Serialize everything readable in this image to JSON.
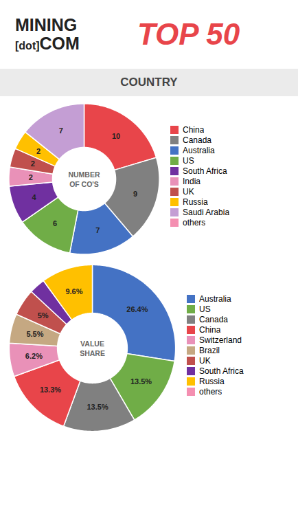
{
  "chart_data": [
    {
      "type": "pie",
      "title": "NUMBER\nOF CO'S",
      "annotations": [
        {
          "text": "MINING",
          "color": "#222222"
        },
        {
          "text": "[dot]",
          "color": "#222222"
        },
        {
          "text": "COM",
          "color": "#222222"
        },
        {
          "text": "TOP 50",
          "color": "#E8454A"
        },
        {
          "text": "COUNTRY",
          "color": "#444444"
        }
      ],
      "categories": [
        "China",
        "Canada",
        "Australia",
        "US",
        "South Africa",
        "India",
        "UK",
        "Russia",
        "Saudi Arabia",
        "others"
      ],
      "values": [
        10,
        9,
        7,
        6,
        4,
        2,
        2,
        2,
        7,
        null
      ],
      "colors": [
        "#E8454A",
        "#808080",
        "#4472C4",
        "#70AD47",
        "#7030A0",
        "#E991B8",
        "#C0504D",
        "#FFC000",
        "#C49ED4",
        "#F48FB1"
      ],
      "data_labels": true,
      "legend": "right"
    },
    {
      "type": "pie",
      "title": "VALUE\nSHARE",
      "categories": [
        "Australia",
        "US",
        "Canada",
        "China",
        "Switzerland",
        "Brazil",
        "UK",
        "South Africa",
        "Russia",
        "others"
      ],
      "values": [
        26.4,
        13.5,
        13.5,
        13.3,
        6.2,
        5.5,
        5,
        3,
        9.6,
        null
      ],
      "value_labels": [
        "26.4%",
        "13.5%",
        "13.5%",
        "13.3%",
        "6.2%",
        "5.5%",
        "5%",
        null,
        "9.6%",
        null
      ],
      "colors": [
        "#4472C4",
        "#70AD47",
        "#808080",
        "#E8454A",
        "#E991B8",
        "#C5A882",
        "#C0504D",
        "#7030A0",
        "#FFC000",
        "#F48FB1"
      ],
      "data_labels": true,
      "legend": "right"
    }
  ]
}
